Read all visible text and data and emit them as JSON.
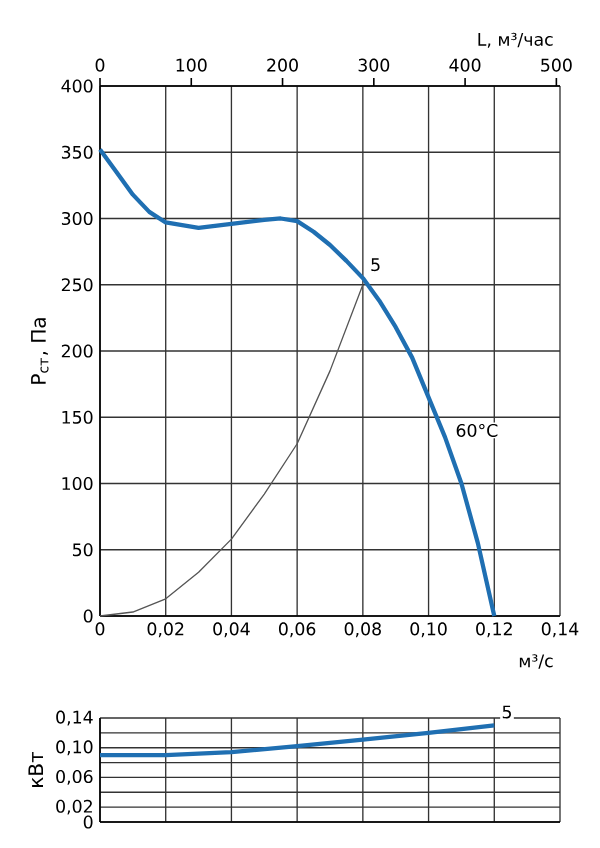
{
  "chart_data": [
    {
      "type": "line",
      "xlabel": "м³/с",
      "ylabel": "Р$_{ст}$, Па",
      "x2label": "L, м³/час",
      "xlim": [
        0,
        0.14
      ],
      "xticks": [
        0,
        {
          "value": 0.02,
          "label": "0,02"
        },
        {
          "value": 0.04,
          "label": "0,04"
        },
        {
          "value": 0.06,
          "label": "0,06"
        },
        {
          "value": 0.08,
          "label": "0,08"
        },
        {
          "value": 0.1,
          "label": "0,10"
        },
        {
          "value": 0.12,
          "label": "0,12"
        },
        {
          "value": 0.14,
          "label": "0,14"
        }
      ],
      "ylim": [
        0,
        400
      ],
      "yticks": [
        0,
        50,
        100,
        150,
        200,
        250,
        300,
        350,
        400
      ],
      "x2lim": [
        0,
        504
      ],
      "x2ticks": [
        0,
        100,
        200,
        300,
        400,
        500
      ],
      "grid": true,
      "series": [
        {
          "color": "#1f6fb2",
          "x": [
            0,
            0.005,
            0.01,
            0.015,
            0.02,
            0.03,
            0.04,
            0.05,
            0.055,
            0.06,
            0.065,
            0.07,
            0.075,
            0.08,
            0.085,
            0.09,
            0.095,
            0.1,
            0.105,
            0.11,
            0.115,
            0.12
          ],
          "values": [
            352,
            335,
            318,
            305,
            297,
            293,
            296,
            299,
            300,
            298,
            290,
            280,
            268,
            255,
            238,
            218,
            195,
            165,
            135,
            100,
            55,
            0
          ]
        },
        {
          "color": "#555555",
          "x": [
            0,
            0.01,
            0.02,
            0.03,
            0.04,
            0.05,
            0.06,
            0.07,
            0.08
          ],
          "values": [
            0,
            3,
            13,
            33,
            58,
            92,
            130,
            185,
            250
          ]
        }
      ],
      "annotations": [
        {
          "text": "5",
          "x": 0.08,
          "y": 255
        },
        {
          "text": "60°C",
          "x": 0.106,
          "y": 130
        }
      ]
    },
    {
      "type": "line",
      "ylabel": "кВт",
      "tick_labels": "y",
      "xlim": [
        0,
        0.14
      ],
      "xticks": [
        0,
        0.02,
        0.04,
        0.06,
        0.08,
        0.1,
        0.12,
        0.14
      ],
      "ylim": [
        0,
        0.14
      ],
      "yticks": [
        0,
        {
          "value": 0.02,
          "label": "0,02"
        },
        {
          "value": 0.04,
          "label": null
        },
        {
          "value": 0.06,
          "label": "0,06"
        },
        {
          "value": 0.08,
          "label": null
        },
        {
          "value": 0.1,
          "label": "0,10"
        },
        {
          "value": 0.12,
          "label": null
        },
        {
          "value": 0.14,
          "label": "0,14"
        }
      ],
      "grid": true,
      "series": [
        {
          "color": "#1f6fb2",
          "x": [
            0,
            0.02,
            0.04,
            0.06,
            0.08,
            0.1,
            0.12
          ],
          "values": [
            0.09,
            0.09,
            0.094,
            0.102,
            0.111,
            0.12,
            0.13
          ]
        }
      ],
      "annotations": [
        {
          "text": "5",
          "x": 0.12,
          "y": 0.13
        }
      ]
    }
  ]
}
